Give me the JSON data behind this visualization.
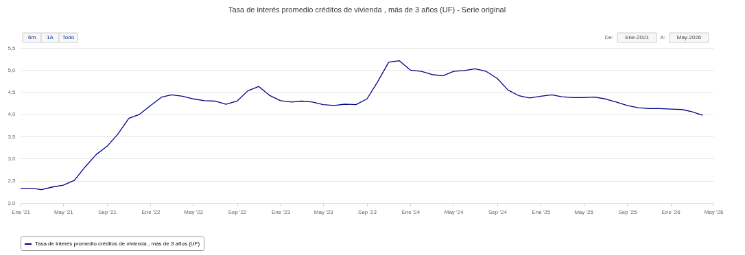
{
  "chart_data": {
    "type": "line",
    "title": "Tasa de interés promedio créditos de vivienda , más de 3 años (UF) - Serie original",
    "x": [
      "2021-01",
      "2021-02",
      "2021-03",
      "2021-04",
      "2021-05",
      "2021-06",
      "2021-07",
      "2021-08",
      "2021-09",
      "2021-10",
      "2021-11",
      "2021-12",
      "2022-01",
      "2022-02",
      "2022-03",
      "2022-04",
      "2022-05",
      "2022-06",
      "2022-07",
      "2022-08",
      "2022-09",
      "2022-10",
      "2022-11",
      "2022-12",
      "2023-01",
      "2023-02",
      "2023-03",
      "2023-04",
      "2023-05",
      "2023-06",
      "2023-07",
      "2023-08",
      "2023-09",
      "2023-10",
      "2023-11",
      "2023-12",
      "2024-01",
      "2024-02",
      "2024-03",
      "2024-04",
      "2024-05",
      "2024-06",
      "2024-07",
      "2024-08",
      "2024-09",
      "2024-10",
      "2024-11",
      "2024-12",
      "2025-01",
      "2025-02",
      "2025-03",
      "2025-04",
      "2025-05",
      "2025-06",
      "2025-07",
      "2025-08",
      "2025-09",
      "2025-10",
      "2025-11",
      "2025-12",
      "2026-01",
      "2026-02",
      "2026-03",
      "2026-04"
    ],
    "series": [
      {
        "name": "Tasa de interés promedio créditos de vivienda , más de 3 años (UF)",
        "color": "#00008b",
        "values": [
          2.33,
          2.33,
          2.3,
          2.36,
          2.4,
          2.51,
          2.81,
          3.09,
          3.28,
          3.55,
          3.91,
          4.0,
          4.2,
          4.39,
          4.44,
          4.41,
          4.35,
          4.31,
          4.3,
          4.23,
          4.3,
          4.53,
          4.63,
          4.43,
          4.31,
          4.28,
          4.3,
          4.28,
          4.22,
          4.2,
          4.23,
          4.22,
          4.35,
          4.74,
          5.18,
          5.21,
          5.0,
          4.97,
          4.9,
          4.87,
          4.97,
          4.99,
          5.03,
          4.97,
          4.81,
          4.55,
          4.42,
          4.37,
          4.41,
          4.44,
          4.4,
          4.38,
          4.38,
          4.39,
          4.35,
          4.28,
          4.2,
          4.15,
          4.13,
          4.13,
          4.12,
          4.11,
          4.06,
          3.98
        ]
      }
    ],
    "xlim": [
      "2021-01",
      "2026-05"
    ],
    "xticks": [
      {
        "value": "2021-01",
        "label": "Ene '21"
      },
      {
        "value": "2021-05",
        "label": "May '21"
      },
      {
        "value": "2021-09",
        "label": "Sep '21"
      },
      {
        "value": "2022-01",
        "label": "Ene '22"
      },
      {
        "value": "2022-05",
        "label": "May '22"
      },
      {
        "value": "2022-09",
        "label": "Sep '22"
      },
      {
        "value": "2023-01",
        "label": "Ene '23"
      },
      {
        "value": "2023-05",
        "label": "May '23"
      },
      {
        "value": "2023-09",
        "label": "Sep '23"
      },
      {
        "value": "2024-01",
        "label": "Ene '24"
      },
      {
        "value": "2024-05",
        "label": "May '24"
      },
      {
        "value": "2024-09",
        "label": "Sep '24"
      },
      {
        "value": "2025-01",
        "label": "Ene '25"
      },
      {
        "value": "2025-05",
        "label": "May '25"
      },
      {
        "value": "2025-09",
        "label": "Sep '25"
      },
      {
        "value": "2026-01",
        "label": "Ene '26"
      },
      {
        "value": "2026-05",
        "label": "May '26"
      }
    ],
    "ylim": [
      2.0,
      5.5
    ],
    "yticks": [
      {
        "value": 2.0,
        "label": "2,0"
      },
      {
        "value": 2.5,
        "label": "2,5"
      },
      {
        "value": 3.0,
        "label": "3,0"
      },
      {
        "value": 3.5,
        "label": "3,5"
      },
      {
        "value": 4.0,
        "label": "4,0"
      },
      {
        "value": 4.5,
        "label": "4,5"
      },
      {
        "value": 5.0,
        "label": "5,0"
      },
      {
        "value": 5.5,
        "label": "5,5"
      }
    ],
    "grid": "y",
    "legend": "bottom",
    "marker": "none",
    "line_style": "solid",
    "annotations": [
      "6m",
      "1A",
      "Todo",
      "De:",
      "Ene-2021",
      "A:",
      "May-2026"
    ]
  }
}
